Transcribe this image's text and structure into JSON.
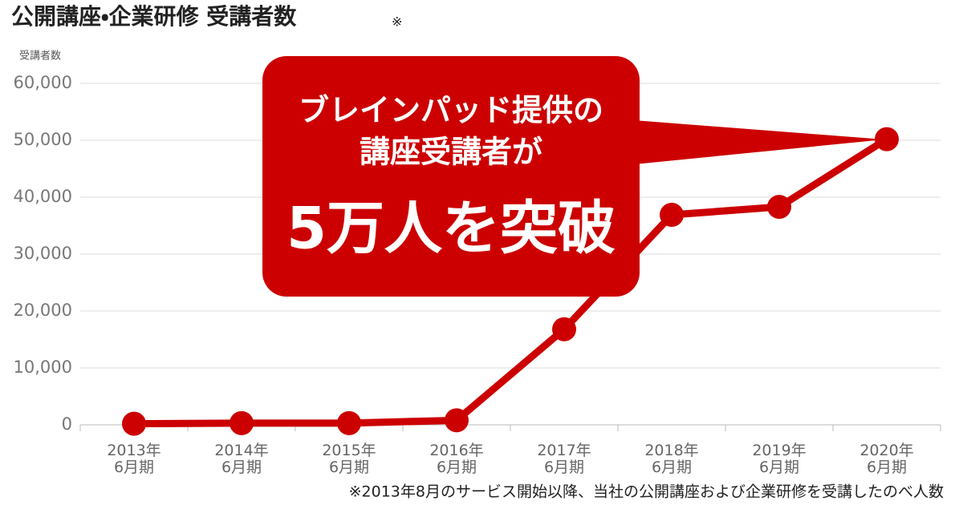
{
  "chart_data": {
    "type": "line",
    "title": "公開講座・企業研修 受講者数",
    "title_note": "※",
    "y_label": "受講者数",
    "categories": [
      "2013年\n6月期",
      "2014年\n6月期",
      "2015年\n6月期",
      "2016年\n6月期",
      "2017年\n6月期",
      "2018年\n6月期",
      "2019年\n6月期",
      "2020年\n6月期"
    ],
    "series": [
      {
        "name": "受講者数",
        "color": "#cc0000",
        "values": [
          200,
          300,
          300,
          800,
          16800,
          36900,
          38300,
          50200
        ]
      }
    ],
    "ylim": [
      0,
      60000
    ],
    "yticks": [
      0,
      {
        "value": 10000,
        "label": "10,000"
      },
      {
        "value": 20000,
        "label": "20,000"
      },
      {
        "value": 30000,
        "label": "30,000"
      },
      {
        "value": 40000,
        "label": "40,000"
      },
      {
        "value": 50000,
        "label": "50,000"
      },
      {
        "value": 60000,
        "label": "60,000"
      }
    ],
    "grid": true,
    "annotation": [
      "ブレインパッド提供の",
      "講座受講者が",
      "5万人を突破"
    ],
    "footnote": "※2013年8月のサービス開始以降、当社の公開講座および企業研修を受講したのべ人数"
  }
}
